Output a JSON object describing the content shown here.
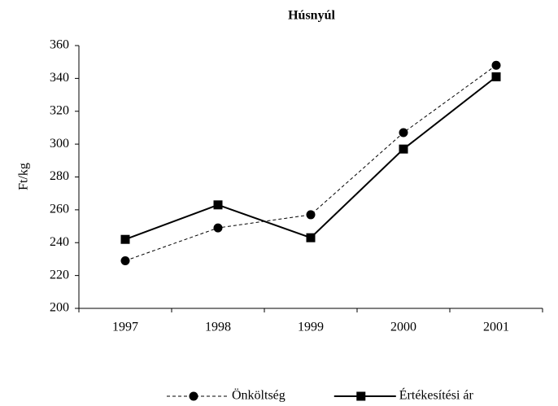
{
  "chart_data": {
    "type": "line",
    "title": "Húsnyúl",
    "y_label": "Ft/kg",
    "categories": [
      "1997",
      "1998",
      "1999",
      "2000",
      "2001"
    ],
    "series": [
      {
        "name": "Önköltség",
        "color": "#000000",
        "style": "dashed",
        "marker": "circle",
        "values": [
          229,
          249,
          257,
          307,
          348
        ]
      },
      {
        "name": "Értékesítési ár",
        "color": "#000000",
        "style": "solid",
        "marker": "square",
        "values": [
          242,
          263,
          243,
          297,
          341
        ]
      }
    ],
    "ylim": [
      200,
      360
    ],
    "yticks": [
      200,
      220,
      240,
      260,
      280,
      300,
      320,
      340,
      360
    ],
    "grid": false,
    "legend": "bottom"
  }
}
